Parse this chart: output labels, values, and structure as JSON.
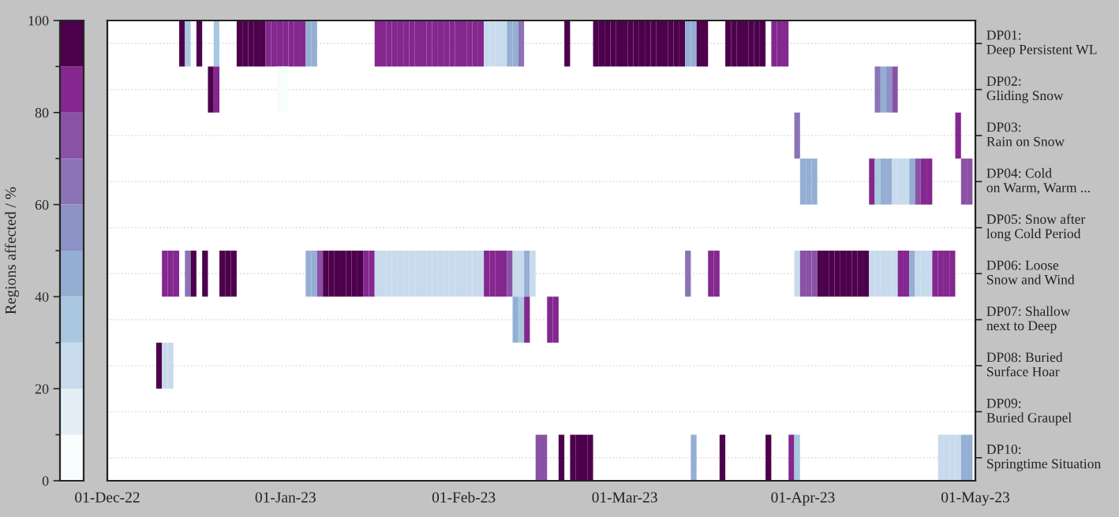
{
  "chart_data": {
    "type": "heatmap",
    "clabel": "Regions affected / %",
    "clim": [
      0,
      100
    ],
    "cticks": [
      0,
      20,
      40,
      60,
      80,
      100
    ],
    "colors": [
      "#f7fcfd",
      "#e3eef5",
      "#c8dbec",
      "#a9c8e0",
      "#95aed3",
      "#8c92c5",
      "#8b73b5",
      "#8a52a5",
      "#84278f",
      "#4d004b"
    ],
    "y_categories": [
      "DP01:\nDeep Persistent WL",
      "DP02:\nGliding Snow",
      "DP03:\nRain on Snow",
      "DP04: Cold\non Warm, Warm ...",
      "DP05: Snow after\nlong Cold Period",
      "DP06: Loose\nSnow and Wind",
      "DP07: Shallow\nnext to Deep",
      "DP08: Buried\nSurface Hoar",
      "DP09:\nBuried Graupel",
      "DP10:\nSpringtime Situation"
    ],
    "x": [
      "2022-12-01",
      "2022-12-02",
      "2022-12-03",
      "2022-12-04",
      "2022-12-05",
      "2022-12-06",
      "2022-12-07",
      "2022-12-08",
      "2022-12-09",
      "2022-12-10",
      "2022-12-11",
      "2022-12-12",
      "2022-12-13",
      "2022-12-14",
      "2022-12-15",
      "2022-12-16",
      "2022-12-17",
      "2022-12-18",
      "2022-12-19",
      "2022-12-20",
      "2022-12-21",
      "2022-12-22",
      "2022-12-23",
      "2022-12-24",
      "2022-12-25",
      "2022-12-26",
      "2022-12-27",
      "2022-12-28",
      "2022-12-29",
      "2022-12-30",
      "2022-12-31",
      "2023-01-01",
      "2023-01-02",
      "2023-01-03",
      "2023-01-04",
      "2023-01-05",
      "2023-01-06",
      "2023-01-07",
      "2023-01-08",
      "2023-01-09",
      "2023-01-10",
      "2023-01-11",
      "2023-01-12",
      "2023-01-13",
      "2023-01-14",
      "2023-01-15",
      "2023-01-16",
      "2023-01-17",
      "2023-01-18",
      "2023-01-19",
      "2023-01-20",
      "2023-01-21",
      "2023-01-22",
      "2023-01-23",
      "2023-01-24",
      "2023-01-25",
      "2023-01-26",
      "2023-01-27",
      "2023-01-28",
      "2023-01-29",
      "2023-01-30",
      "2023-01-31",
      "2023-02-01",
      "2023-02-02",
      "2023-02-03",
      "2023-02-04",
      "2023-02-05",
      "2023-02-06",
      "2023-02-07",
      "2023-02-08",
      "2023-02-09",
      "2023-02-10",
      "2023-02-11",
      "2023-02-12",
      "2023-02-13",
      "2023-02-14",
      "2023-02-15",
      "2023-02-16",
      "2023-02-17",
      "2023-02-18",
      "2023-02-19",
      "2023-02-20",
      "2023-02-21",
      "2023-02-22",
      "2023-02-23",
      "2023-02-24",
      "2023-02-25",
      "2023-02-26",
      "2023-02-27",
      "2023-02-28",
      "2023-03-01",
      "2023-03-02",
      "2023-03-03",
      "2023-03-04",
      "2023-03-05",
      "2023-03-06",
      "2023-03-07",
      "2023-03-08",
      "2023-03-09",
      "2023-03-10",
      "2023-03-11",
      "2023-03-12",
      "2023-03-13",
      "2023-03-14",
      "2023-03-15",
      "2023-03-16",
      "2023-03-17",
      "2023-03-18",
      "2023-03-19",
      "2023-03-20",
      "2023-03-21",
      "2023-03-22",
      "2023-03-23",
      "2023-03-24",
      "2023-03-25",
      "2023-03-26",
      "2023-03-27",
      "2023-03-28",
      "2023-03-29",
      "2023-03-30",
      "2023-03-31",
      "2023-04-01",
      "2023-04-02",
      "2023-04-03",
      "2023-04-04",
      "2023-04-05",
      "2023-04-06",
      "2023-04-07",
      "2023-04-08",
      "2023-04-09",
      "2023-04-10",
      "2023-04-11",
      "2023-04-12",
      "2023-04-13",
      "2023-04-14",
      "2023-04-15",
      "2023-04-16",
      "2023-04-17",
      "2023-04-18",
      "2023-04-19",
      "2023-04-20",
      "2023-04-21",
      "2023-04-22",
      "2023-04-23",
      "2023-04-24",
      "2023-04-25",
      "2023-04-26",
      "2023-04-27",
      "2023-04-28",
      "2023-04-29",
      "2023-04-30"
    ],
    "xlim": [
      "2022-12-01",
      "2023-05-01"
    ],
    "xticks": [
      {
        "value": "2022-12-01",
        "label": "01-Dec-22"
      },
      {
        "value": "2023-01-01",
        "label": "01-Jan-23"
      },
      {
        "value": "2023-02-01",
        "label": "01-Feb-23"
      },
      {
        "value": "2023-03-01",
        "label": "01-Mar-23"
      },
      {
        "value": "2023-04-01",
        "label": "01-Apr-23"
      },
      {
        "value": "2023-05-01",
        "label": "01-May-23"
      }
    ],
    "grid": "y",
    "cells": [
      [
        null,
        null,
        null,
        null,
        null,
        null,
        null,
        null,
        null,
        null,
        null,
        null,
        null,
        95,
        35,
        null,
        95,
        null,
        null,
        35,
        null,
        null,
        null,
        95,
        95,
        95,
        95,
        95,
        85,
        85,
        85,
        85,
        85,
        85,
        85,
        45,
        45,
        null,
        null,
        null,
        null,
        null,
        null,
        null,
        null,
        null,
        null,
        85,
        85,
        85,
        85,
        85,
        85,
        85,
        85,
        85,
        85,
        85,
        85,
        85,
        85,
        85,
        85,
        85,
        85,
        85,
        25,
        25,
        25,
        25,
        45,
        45,
        65,
        null,
        null,
        null,
        null,
        null,
        null,
        null,
        95,
        null,
        null,
        null,
        null,
        95,
        95,
        95,
        95,
        95,
        95,
        95,
        95,
        95,
        95,
        95,
        95,
        95,
        95,
        95,
        95,
        45,
        45,
        95,
        95,
        null,
        null,
        null,
        95,
        95,
        95,
        95,
        95,
        95,
        95,
        null,
        85,
        85,
        85,
        null,
        null,
        null,
        null,
        null,
        null,
        null,
        null,
        null,
        null,
        null,
        null,
        null,
        null,
        null,
        null,
        null,
        null,
        null,
        null,
        null,
        null,
        null,
        null,
        null,
        null,
        null,
        null,
        null,
        null,
        null,
        null
      ],
      [
        null,
        null,
        null,
        null,
        null,
        null,
        null,
        null,
        null,
        null,
        null,
        null,
        null,
        null,
        null,
        null,
        null,
        null,
        95,
        85,
        null,
        null,
        null,
        null,
        null,
        null,
        null,
        null,
        null,
        null,
        5,
        5,
        null,
        null,
        null,
        null,
        null,
        null,
        null,
        null,
        null,
        null,
        null,
        null,
        null,
        null,
        null,
        null,
        null,
        null,
        null,
        null,
        null,
        null,
        null,
        null,
        null,
        null,
        null,
        null,
        null,
        null,
        null,
        null,
        null,
        null,
        null,
        null,
        null,
        null,
        null,
        null,
        null,
        null,
        null,
        null,
        null,
        null,
        null,
        null,
        null,
        null,
        null,
        null,
        null,
        null,
        null,
        null,
        null,
        null,
        null,
        null,
        null,
        null,
        null,
        null,
        null,
        null,
        null,
        null,
        null,
        null,
        null,
        null,
        null,
        null,
        null,
        null,
        null,
        null,
        null,
        null,
        null,
        null,
        null,
        null,
        null,
        null,
        null,
        null,
        null,
        null,
        null,
        null,
        null,
        null,
        null,
        null,
        null,
        null,
        null,
        null,
        null,
        null,
        65,
        45,
        55,
        75,
        null,
        null,
        null,
        null,
        null,
        null,
        null,
        null,
        null,
        null,
        null,
        null,
        null
      ],
      [
        null,
        null,
        null,
        null,
        null,
        null,
        null,
        null,
        null,
        null,
        null,
        null,
        null,
        null,
        null,
        null,
        null,
        null,
        null,
        null,
        null,
        null,
        null,
        null,
        null,
        null,
        null,
        null,
        null,
        null,
        null,
        null,
        null,
        null,
        null,
        null,
        null,
        null,
        null,
        null,
        null,
        null,
        null,
        null,
        null,
        null,
        null,
        null,
        null,
        null,
        null,
        null,
        null,
        null,
        null,
        null,
        null,
        null,
        null,
        null,
        null,
        null,
        null,
        null,
        null,
        null,
        null,
        null,
        null,
        null,
        null,
        null,
        null,
        null,
        null,
        null,
        null,
        null,
        null,
        null,
        null,
        null,
        null,
        null,
        null,
        null,
        null,
        null,
        null,
        null,
        null,
        null,
        null,
        null,
        null,
        null,
        null,
        null,
        null,
        null,
        null,
        null,
        null,
        null,
        null,
        null,
        null,
        null,
        null,
        null,
        null,
        null,
        null,
        null,
        null,
        null,
        null,
        null,
        null,
        null,
        65,
        null,
        null,
        null,
        null,
        null,
        null,
        null,
        null,
        null,
        null,
        null,
        null,
        null,
        null,
        null,
        null,
        null,
        null,
        null,
        null,
        null,
        null,
        null,
        null,
        null,
        null,
        null,
        85,
        null,
        null
      ],
      [
        null,
        null,
        null,
        null,
        null,
        null,
        null,
        null,
        null,
        null,
        null,
        null,
        null,
        null,
        null,
        null,
        null,
        null,
        null,
        null,
        null,
        null,
        null,
        null,
        null,
        null,
        null,
        null,
        null,
        null,
        null,
        null,
        null,
        null,
        null,
        null,
        null,
        null,
        null,
        null,
        null,
        null,
        null,
        null,
        null,
        null,
        null,
        null,
        null,
        null,
        null,
        null,
        null,
        null,
        null,
        null,
        null,
        null,
        null,
        null,
        null,
        null,
        null,
        null,
        null,
        null,
        null,
        null,
        null,
        null,
        null,
        null,
        null,
        null,
        null,
        null,
        null,
        null,
        null,
        null,
        null,
        null,
        null,
        null,
        null,
        null,
        null,
        null,
        null,
        null,
        null,
        null,
        null,
        null,
        null,
        null,
        null,
        null,
        null,
        null,
        null,
        null,
        null,
        null,
        null,
        null,
        null,
        null,
        null,
        null,
        null,
        null,
        null,
        null,
        null,
        null,
        null,
        null,
        null,
        null,
        null,
        45,
        45,
        45,
        null,
        null,
        null,
        null,
        null,
        null,
        null,
        null,
        null,
        85,
        35,
        45,
        45,
        25,
        25,
        25,
        45,
        75,
        85,
        85,
        null,
        null,
        null,
        null,
        null,
        75,
        75
      ],
      [
        null,
        null,
        null,
        null,
        null,
        null,
        null,
        null,
        null,
        null,
        null,
        null,
        null,
        null,
        null,
        null,
        null,
        null,
        null,
        null,
        null,
        null,
        null,
        null,
        null,
        null,
        null,
        null,
        null,
        null,
        null,
        null,
        null,
        null,
        null,
        null,
        null,
        null,
        null,
        null,
        null,
        null,
        null,
        null,
        null,
        null,
        null,
        null,
        null,
        null,
        null,
        null,
        null,
        null,
        null,
        null,
        null,
        null,
        null,
        null,
        null,
        null,
        null,
        null,
        null,
        null,
        null,
        null,
        null,
        null,
        null,
        null,
        null,
        null,
        null,
        null,
        null,
        null,
        null,
        null,
        null,
        null,
        null,
        null,
        null,
        null,
        null,
        null,
        null,
        null,
        null,
        null,
        null,
        null,
        null,
        null,
        null,
        null,
        null,
        null,
        null,
        null,
        null,
        null,
        null,
        null,
        null,
        null,
        null,
        null,
        null,
        null,
        null,
        null,
        null,
        null,
        null,
        null,
        null,
        null,
        null,
        null,
        null,
        null,
        null,
        null,
        null,
        null,
        null,
        null,
        null,
        null,
        null,
        null,
        null,
        null,
        null,
        null,
        null,
        null,
        null,
        null,
        null,
        null,
        null,
        null,
        null,
        null,
        null,
        null,
        null
      ],
      [
        null,
        null,
        null,
        null,
        null,
        null,
        null,
        null,
        null,
        null,
        85,
        85,
        85,
        null,
        65,
        95,
        null,
        95,
        null,
        null,
        95,
        95,
        95,
        null,
        null,
        null,
        null,
        null,
        null,
        null,
        null,
        null,
        null,
        null,
        null,
        45,
        45,
        75,
        95,
        95,
        95,
        95,
        95,
        95,
        95,
        85,
        85,
        25,
        25,
        25,
        25,
        25,
        25,
        25,
        25,
        25,
        25,
        25,
        25,
        25,
        25,
        25,
        25,
        25,
        25,
        25,
        85,
        85,
        85,
        85,
        75,
        25,
        25,
        45,
        25,
        null,
        null,
        null,
        null,
        null,
        null,
        null,
        null,
        null,
        null,
        null,
        null,
        null,
        null,
        null,
        null,
        null,
        null,
        null,
        null,
        null,
        null,
        null,
        null,
        null,
        null,
        65,
        null,
        null,
        null,
        85,
        85,
        null,
        null,
        null,
        null,
        null,
        null,
        null,
        null,
        null,
        null,
        null,
        null,
        null,
        25,
        75,
        75,
        75,
        95,
        95,
        95,
        95,
        95,
        95,
        95,
        95,
        95,
        25,
        25,
        25,
        25,
        25,
        85,
        85,
        45,
        25,
        25,
        25,
        85,
        85,
        85,
        85,
        null,
        null,
        null
      ],
      [
        null,
        null,
        null,
        null,
        null,
        null,
        null,
        null,
        null,
        null,
        null,
        null,
        null,
        null,
        null,
        null,
        null,
        null,
        null,
        null,
        null,
        null,
        null,
        null,
        null,
        null,
        null,
        null,
        null,
        null,
        null,
        null,
        null,
        null,
        null,
        null,
        null,
        null,
        null,
        null,
        null,
        null,
        null,
        null,
        null,
        null,
        null,
        null,
        null,
        null,
        null,
        null,
        null,
        null,
        null,
        null,
        null,
        null,
        null,
        null,
        null,
        null,
        null,
        null,
        null,
        null,
        null,
        null,
        null,
        null,
        null,
        45,
        35,
        85,
        null,
        null,
        null,
        85,
        85,
        null,
        null,
        null,
        null,
        null,
        null,
        null,
        null,
        null,
        null,
        null,
        null,
        null,
        null,
        null,
        null,
        null,
        null,
        null,
        null,
        null,
        null,
        null,
        null,
        null,
        null,
        null,
        null,
        null,
        null,
        null,
        null,
        null,
        null,
        null,
        null,
        null,
        null,
        null,
        null,
        null,
        null,
        null,
        null,
        null,
        null,
        null,
        null,
        null,
        null,
        null,
        null,
        null,
        null,
        null,
        null,
        null,
        null,
        null,
        null,
        null,
        null,
        null,
        null,
        null,
        null,
        null,
        null,
        null,
        null,
        null,
        null
      ],
      [
        null,
        null,
        null,
        null,
        null,
        null,
        null,
        null,
        null,
        95,
        25,
        25,
        null,
        null,
        null,
        null,
        null,
        null,
        null,
        null,
        null,
        null,
        null,
        null,
        null,
        null,
        null,
        null,
        null,
        null,
        null,
        null,
        null,
        null,
        null,
        null,
        null,
        null,
        null,
        null,
        null,
        null,
        null,
        null,
        null,
        null,
        null,
        null,
        null,
        null,
        null,
        null,
        null,
        null,
        null,
        null,
        null,
        null,
        null,
        null,
        null,
        null,
        null,
        null,
        null,
        null,
        null,
        null,
        null,
        null,
        null,
        null,
        null,
        null,
        null,
        null,
        null,
        null,
        null,
        null,
        null,
        null,
        null,
        null,
        null,
        null,
        null,
        null,
        null,
        null,
        null,
        null,
        null,
        null,
        null,
        null,
        null,
        null,
        null,
        null,
        null,
        null,
        null,
        null,
        null,
        null,
        null,
        null,
        null,
        null,
        null,
        null,
        null,
        null,
        null,
        null,
        null,
        null,
        null,
        null,
        null,
        null,
        null,
        null,
        null,
        null,
        null,
        null,
        null,
        null,
        null,
        null,
        null,
        null,
        null,
        null,
        null,
        null,
        null,
        null,
        null,
        null,
        null,
        null,
        null,
        null,
        null,
        null,
        null,
        null,
        null
      ],
      [
        null,
        null,
        null,
        null,
        null,
        null,
        null,
        null,
        null,
        null,
        null,
        null,
        null,
        null,
        null,
        null,
        null,
        null,
        null,
        null,
        null,
        null,
        null,
        null,
        null,
        null,
        null,
        null,
        null,
        null,
        null,
        null,
        null,
        null,
        null,
        null,
        null,
        null,
        null,
        null,
        null,
        null,
        null,
        null,
        null,
        null,
        null,
        null,
        null,
        null,
        null,
        null,
        null,
        null,
        null,
        null,
        null,
        null,
        null,
        null,
        null,
        null,
        null,
        null,
        null,
        null,
        null,
        null,
        null,
        null,
        null,
        null,
        null,
        null,
        null,
        null,
        null,
        null,
        null,
        null,
        null,
        null,
        null,
        null,
        null,
        null,
        null,
        null,
        null,
        null,
        null,
        null,
        null,
        null,
        null,
        null,
        null,
        null,
        null,
        null,
        null,
        null,
        null,
        null,
        null,
        null,
        null,
        null,
        null,
        null,
        null,
        null,
        null,
        null,
        null,
        null,
        null,
        null,
        null,
        null,
        null,
        null,
        null,
        null,
        null,
        null,
        null,
        null,
        null,
        null,
        null,
        null,
        null,
        null,
        null,
        null,
        null,
        null,
        null,
        null,
        null,
        null,
        null,
        null,
        null,
        null,
        null,
        null,
        null,
        null,
        null
      ],
      [
        null,
        null,
        null,
        null,
        null,
        null,
        null,
        null,
        null,
        null,
        null,
        null,
        null,
        null,
        null,
        null,
        null,
        null,
        null,
        null,
        null,
        null,
        null,
        null,
        null,
        null,
        null,
        null,
        null,
        null,
        null,
        null,
        null,
        null,
        null,
        null,
        null,
        null,
        null,
        null,
        null,
        null,
        null,
        null,
        null,
        null,
        null,
        null,
        null,
        null,
        null,
        null,
        null,
        null,
        null,
        null,
        null,
        null,
        null,
        null,
        null,
        null,
        null,
        null,
        null,
        null,
        null,
        null,
        null,
        null,
        null,
        null,
        null,
        null,
        null,
        75,
        75,
        null,
        null,
        95,
        null,
        95,
        95,
        95,
        95,
        null,
        null,
        null,
        null,
        null,
        null,
        null,
        null,
        null,
        null,
        null,
        null,
        null,
        null,
        null,
        null,
        null,
        45,
        null,
        null,
        null,
        null,
        95,
        null,
        null,
        null,
        null,
        null,
        null,
        null,
        95,
        null,
        null,
        null,
        85,
        35,
        null,
        null,
        null,
        null,
        null,
        null,
        null,
        null,
        null,
        null,
        null,
        null,
        null,
        null,
        null,
        null,
        null,
        null,
        null,
        null,
        null,
        null,
        null,
        null,
        25,
        25,
        25,
        25,
        45,
        45
      ]
    ]
  }
}
